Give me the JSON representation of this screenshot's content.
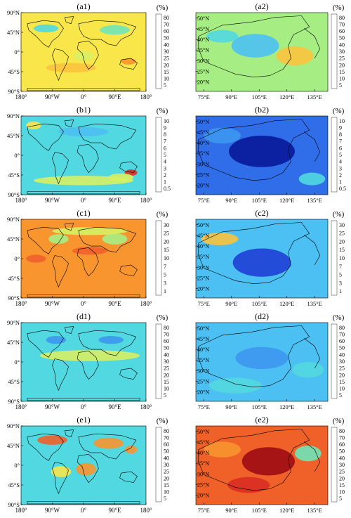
{
  "unit_label": "(%)",
  "colors": {
    "scale": [
      "#08189a",
      "#1f3fd6",
      "#2f6ee8",
      "#3d97f0",
      "#4cc0f3",
      "#52d8e0",
      "#6ee6b7",
      "#a6ee84",
      "#d7f063",
      "#f8e64a",
      "#fbc33d",
      "#f8952f",
      "#f0612a",
      "#d92d22",
      "#9e0c14"
    ],
    "land_outline": "#000000",
    "frame": "#000000"
  },
  "global_axes": {
    "x_ticks": [
      "180°",
      "90°W",
      "0°",
      "90°E",
      "180°"
    ],
    "y_ticks": [
      "90°N",
      "45°N",
      "0°",
      "45°S",
      "90°S"
    ]
  },
  "china_axes": {
    "x_ticks": [
      "75°E",
      "90°E",
      "105°E",
      "120°E",
      "135°E"
    ],
    "y_ticks": [
      "50°N",
      "45°N",
      "40°N",
      "35°N",
      "30°N",
      "25°N",
      "20°N"
    ]
  },
  "rows": [
    {
      "global_label": "(a1)",
      "china_label": "(a2)",
      "colorbar_ticks": [
        "80",
        "70",
        "60",
        "50",
        "40",
        "30",
        "25",
        "20",
        "15",
        "10",
        "5"
      ],
      "global_bg": 9,
      "china_bg": 7
    },
    {
      "global_label": "(b1)",
      "china_label": "(b2)",
      "colorbar_ticks": [
        "10",
        "9",
        "8",
        "7",
        "6",
        "5",
        "4",
        "3",
        "2",
        "1",
        "0.5"
      ],
      "global_bg": 5,
      "china_bg": 2
    },
    {
      "global_label": "(c1)",
      "china_label": "(c2)",
      "colorbar_ticks": [
        "30",
        "25",
        "20",
        "15",
        "10",
        "7",
        "5",
        "3",
        "1"
      ],
      "global_bg": 11,
      "china_bg": 4
    },
    {
      "global_label": "(d1)",
      "china_label": "(d2)",
      "colorbar_ticks": [
        "80",
        "70",
        "60",
        "50",
        "40",
        "30",
        "25",
        "20",
        "15",
        "10",
        "5"
      ],
      "global_bg": 5,
      "china_bg": 4
    },
    {
      "global_label": "(e1)",
      "china_label": "(e2)",
      "colorbar_ticks": [
        "80",
        "70",
        "60",
        "50",
        "40",
        "30",
        "25",
        "20",
        "15",
        "10",
        "5"
      ],
      "global_bg": 5,
      "china_bg": 12
    }
  ]
}
